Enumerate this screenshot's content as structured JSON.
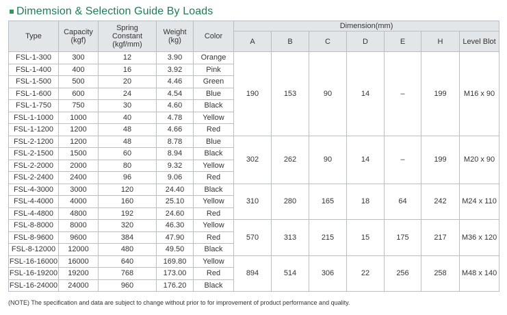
{
  "title": "Dimemsion & Selection Guide By Loads",
  "headers": {
    "type": "Type",
    "capacity": [
      "Capacity",
      "(kgf)"
    ],
    "spring": [
      "Spring",
      "Constant",
      "(kgf/mm)"
    ],
    "weight": [
      "Weight",
      "(kg)"
    ],
    "color": "Color",
    "dimension": "Dimension(mm)",
    "dims": [
      "A",
      "B",
      "C",
      "D",
      "E",
      "H",
      "Level Blot"
    ]
  },
  "groups": [
    {
      "dims": [
        "190",
        "153",
        "90",
        "14",
        "–",
        "199",
        "M16 x 90"
      ],
      "rows": [
        [
          "FSL-1-300",
          "300",
          "12",
          "3.90",
          "Orange"
        ],
        [
          "FSL-1-400",
          "400",
          "16",
          "3.92",
          "Pink"
        ],
        [
          "FSL-1-500",
          "500",
          "20",
          "4.46",
          "Green"
        ],
        [
          "FSL-1-600",
          "600",
          "24",
          "4.54",
          "Blue"
        ],
        [
          "FSL-1-750",
          "750",
          "30",
          "4.60",
          "Black"
        ],
        [
          "FSL-1-1000",
          "1000",
          "40",
          "4.78",
          "Yellow"
        ],
        [
          "FSL-1-1200",
          "1200",
          "48",
          "4.66",
          "Red"
        ]
      ]
    },
    {
      "dims": [
        "302",
        "262",
        "90",
        "14",
        "–",
        "199",
        "M20 x 90"
      ],
      "rows": [
        [
          "FSL-2-1200",
          "1200",
          "48",
          "8.78",
          "Blue"
        ],
        [
          "FSL-2-1500",
          "1500",
          "60",
          "8.94",
          "Black"
        ],
        [
          "FSL-2-2000",
          "2000",
          "80",
          "9.32",
          "Yellow"
        ],
        [
          "FSL-2-2400",
          "2400",
          "96",
          "9.06",
          "Red"
        ]
      ]
    },
    {
      "dims": [
        "310",
        "280",
        "165",
        "18",
        "64",
        "242",
        "M24 x 110"
      ],
      "rows": [
        [
          "FSL-4-3000",
          "3000",
          "120",
          "24.40",
          "Black"
        ],
        [
          "FSL-4-4000",
          "4000",
          "160",
          "25.10",
          "Yellow"
        ],
        [
          "FSL-4-4800",
          "4800",
          "192",
          "24.60",
          "Red"
        ]
      ]
    },
    {
      "dims": [
        "570",
        "313",
        "215",
        "15",
        "175",
        "217",
        "M36 x 120"
      ],
      "rows": [
        [
          "FSL-8-8000",
          "8000",
          "320",
          "46.30",
          "Yellow"
        ],
        [
          "FSL-8-9600",
          "9600",
          "384",
          "47.90",
          "Red"
        ],
        [
          "FSL-8-12000",
          "12000",
          "480",
          "49.50",
          "Black"
        ]
      ]
    },
    {
      "dims": [
        "894",
        "514",
        "306",
        "22",
        "256",
        "258",
        "M48 x 140"
      ],
      "rows": [
        [
          "FSL-16-16000",
          "16000",
          "640",
          "169.80",
          "Yellow"
        ],
        [
          "FSL-16-19200",
          "19200",
          "768",
          "173.00",
          "Red"
        ],
        [
          "FSL-16-24000",
          "24000",
          "960",
          "176.20",
          "Black"
        ]
      ]
    }
  ],
  "note": "(NOTE) The specification and data are subject to change without prior to for improvement of product performance and quality."
}
